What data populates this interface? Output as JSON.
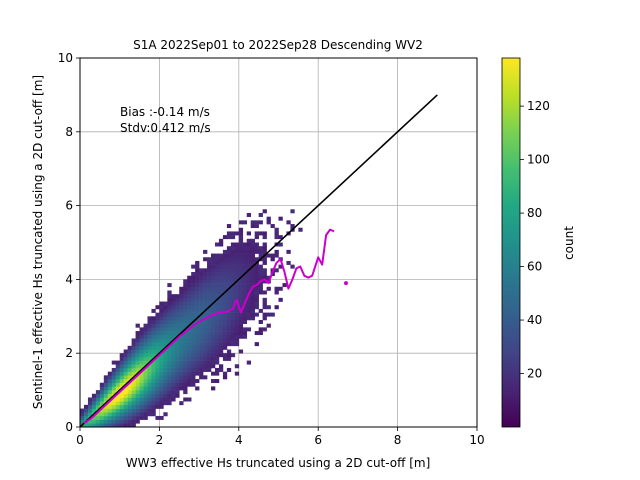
{
  "chart_data": {
    "type": "heatmap",
    "title": "S1A 2022Sep01 to 2022Sep28 Descending WV2",
    "xlabel": "WW3 effective Hs truncated using a 2D cut-off [m]",
    "ylabel": "Sentinel-1 effective Hs truncated using a 2D cut-off [m]",
    "xlim": [
      0,
      10
    ],
    "ylim": [
      0,
      10
    ],
    "xticks": [
      "0",
      "2",
      "4",
      "6",
      "8",
      "10"
    ],
    "yticks": [
      "0",
      "2",
      "4",
      "6",
      "8",
      "10"
    ],
    "grid": true,
    "annotations": {
      "bias": "Bias :-0.14 m/s",
      "stdv": "Stdv:0.412 m/s"
    },
    "identity_line": {
      "x": [
        0,
        9
      ],
      "y": [
        0,
        9
      ],
      "color": "#000000"
    },
    "binned_mean": {
      "color": "#cc00cc",
      "x": [
        0.1,
        0.3,
        0.5,
        0.7,
        0.9,
        1.1,
        1.3,
        1.5,
        1.7,
        1.9,
        2.1,
        2.3,
        2.5,
        2.7,
        2.9,
        3.1,
        3.3,
        3.5,
        3.7,
        3.85,
        3.95,
        4.05,
        4.15,
        4.25,
        4.35,
        4.45,
        4.55,
        4.65,
        4.75,
        4.85,
        4.95,
        5.05,
        5.15,
        5.25,
        5.35,
        5.45,
        5.55,
        5.65,
        5.75,
        5.85,
        6.0,
        6.1,
        6.2,
        6.3,
        6.4
      ],
      "y": [
        0.1,
        0.25,
        0.45,
        0.65,
        0.85,
        1.05,
        1.25,
        1.45,
        1.65,
        1.85,
        2.05,
        2.25,
        2.45,
        2.62,
        2.78,
        2.92,
        3.02,
        3.1,
        3.12,
        3.2,
        3.45,
        3.1,
        3.35,
        3.6,
        3.8,
        3.85,
        3.95,
        4.0,
        3.9,
        4.2,
        4.45,
        4.55,
        4.2,
        3.75,
        4.0,
        4.3,
        4.35,
        4.1,
        4.05,
        4.1,
        4.6,
        4.4,
        5.2,
        5.35,
        5.3
      ]
    },
    "outlier": {
      "x": 6.7,
      "y": 3.9
    },
    "colorbar": {
      "label": "count",
      "min": 0,
      "max": 138,
      "ticks": [
        "20",
        "40",
        "60",
        "80",
        "100",
        "120"
      ],
      "tick_values": [
        20,
        40,
        60,
        80,
        100,
        120
      ],
      "colormap": "viridis"
    },
    "density_model": {
      "bin_size": 0.1,
      "ridge_slope": 0.94,
      "peak_count": 138,
      "peak_x": 1.0
    }
  }
}
